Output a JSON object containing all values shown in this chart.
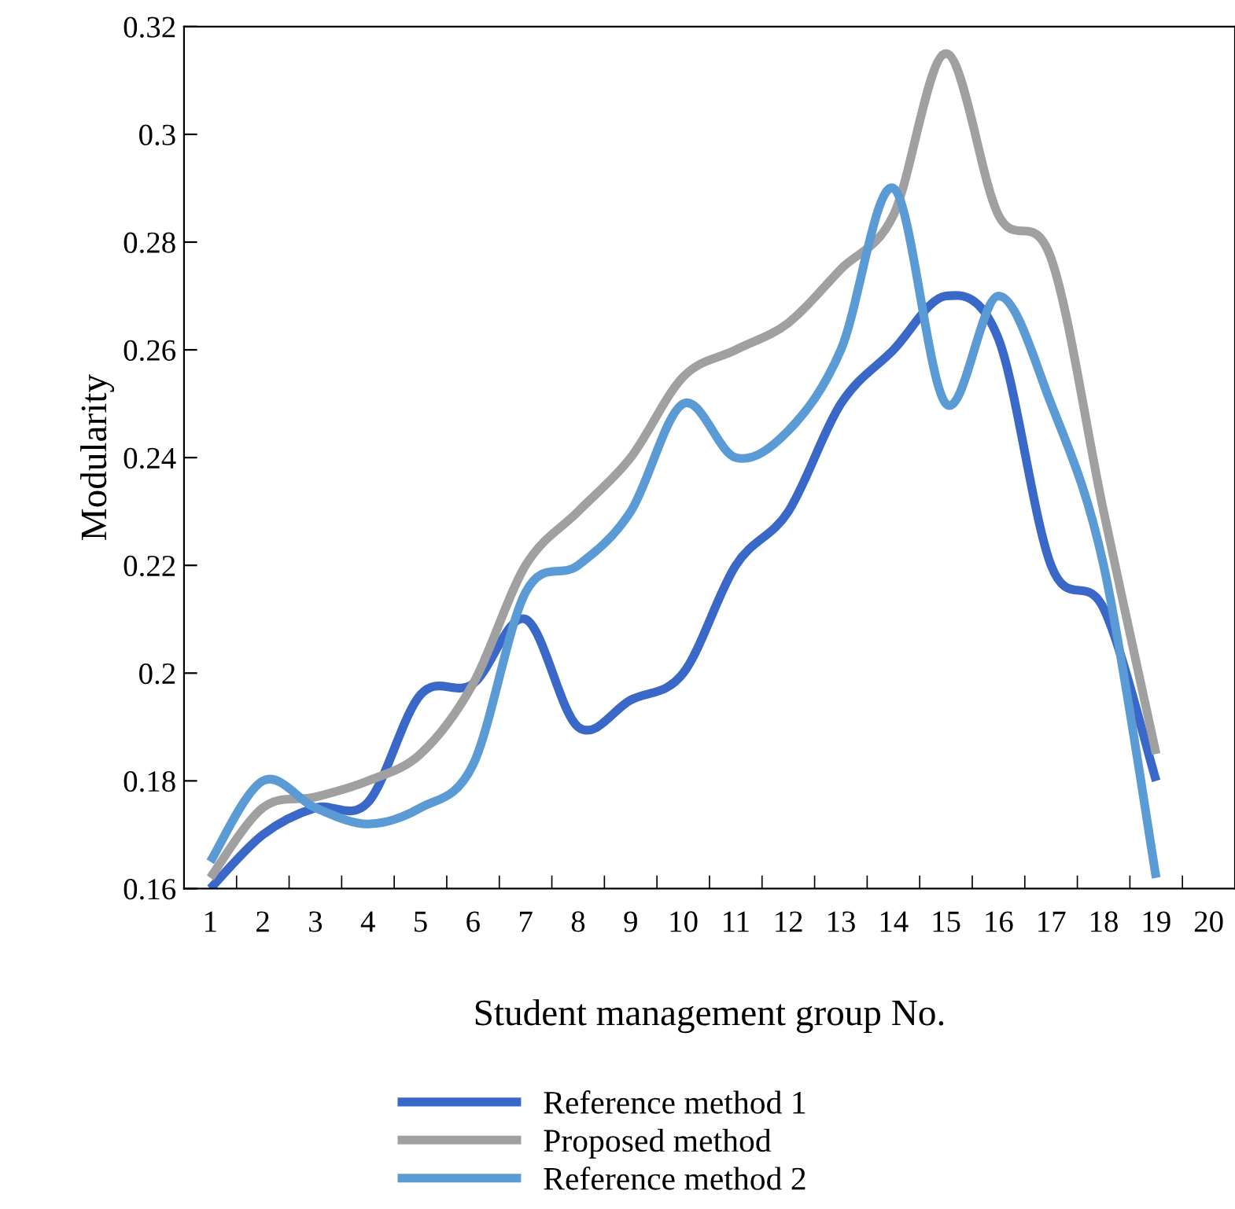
{
  "chart_data": {
    "type": "line",
    "xlabel": "Student management group No.",
    "ylabel": "Modularity",
    "categories": [
      "1",
      "2",
      "3",
      "4",
      "5",
      "6",
      "7",
      "8",
      "9",
      "10",
      "11",
      "12",
      "13",
      "14",
      "15",
      "16",
      "17",
      "18",
      "19",
      "20"
    ],
    "series": [
      {
        "name": "Reference method 1",
        "color": "#3a68c8",
        "values": [
          0.16,
          0.17,
          0.175,
          0.176,
          0.196,
          0.198,
          0.21,
          0.19,
          0.195,
          0.2,
          0.22,
          0.23,
          0.25,
          0.26,
          0.27,
          0.262,
          0.22,
          0.212,
          0.18,
          null
        ]
      },
      {
        "name": "Proposed method",
        "color": "#a0a0a0",
        "values": [
          0.162,
          0.175,
          0.177,
          0.18,
          0.185,
          0.198,
          0.22,
          0.23,
          0.24,
          0.255,
          0.26,
          0.265,
          0.275,
          0.285,
          0.315,
          0.285,
          0.277,
          0.23,
          0.185,
          null
        ]
      },
      {
        "name": "Reference method 2",
        "color": "#5b9bd5",
        "values": [
          0.165,
          0.18,
          0.175,
          0.172,
          0.175,
          0.183,
          0.215,
          0.22,
          0.23,
          0.25,
          0.24,
          0.245,
          0.26,
          0.29,
          0.25,
          0.27,
          0.25,
          0.22,
          0.162,
          null
        ]
      }
    ],
    "ylim": [
      0.16,
      0.32
    ],
    "yticks": [
      0.16,
      0.18,
      0.2,
      0.22,
      0.24,
      0.26,
      0.28,
      0.3,
      0.32
    ],
    "grid": false,
    "legend": "bottom",
    "marker": "none",
    "line_style": "solid"
  }
}
